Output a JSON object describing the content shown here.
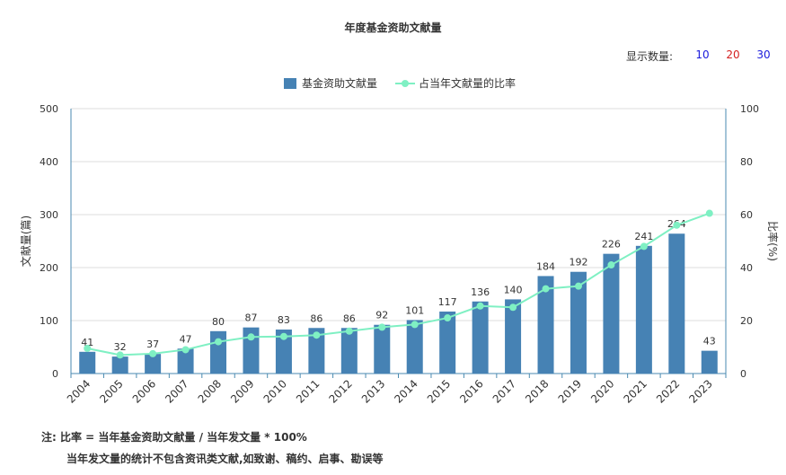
{
  "title": "年度基金资助文献量",
  "count_selector": {
    "label": "显示数量:",
    "options": [
      {
        "label": "10",
        "color": "#1a1adb"
      },
      {
        "label": "20",
        "color": "#d42020"
      },
      {
        "label": "30",
        "color": "#1a1adb"
      }
    ]
  },
  "notes": {
    "line1": "注:   比率 = 当年基金资助文献量 / 当年发文量 * 100%",
    "line2": "当年发文量的统计不包含资讯类文献,如致谢、稿约、启事、勘误等"
  },
  "chart_data": {
    "type": "bar",
    "categories": [
      "2004",
      "2005",
      "2006",
      "2007",
      "2008",
      "2009",
      "2010",
      "2011",
      "2012",
      "2013",
      "2014",
      "2015",
      "2016",
      "2017",
      "2018",
      "2019",
      "2020",
      "2021",
      "2022",
      "2023"
    ],
    "series": [
      {
        "name": "基金资助文献量",
        "type": "bar",
        "axis": "left",
        "color": "#4682b4",
        "values": [
          41,
          32,
          37,
          47,
          80,
          87,
          83,
          86,
          86,
          92,
          101,
          117,
          136,
          140,
          184,
          192,
          226,
          241,
          264,
          43
        ],
        "labels": [
          "41",
          "32",
          "37",
          "47",
          "80",
          "87",
          "83",
          "86",
          "86",
          "92",
          "101",
          "117",
          "136",
          "140",
          "184",
          "192",
          "226",
          "241",
          "264",
          "43"
        ]
      },
      {
        "name": "占当年文献量的比率",
        "type": "line",
        "axis": "right",
        "color": "#7ff0c3",
        "values": [
          9.5,
          7,
          7.5,
          9,
          12,
          13.8,
          14,
          14.5,
          16,
          17.5,
          18.5,
          21,
          25.5,
          25,
          32,
          33,
          41,
          48,
          56,
          60.5
        ]
      }
    ],
    "ylabel": "文献量(篇)",
    "y2label": "比率(%)",
    "ylim": [
      0,
      500
    ],
    "y2lim": [
      0,
      100
    ],
    "yticks": [
      "0",
      "100",
      "200",
      "300",
      "400",
      "500"
    ],
    "y2ticks": [
      "0",
      "20",
      "40",
      "60",
      "80",
      "100"
    ],
    "legend": "top-center",
    "grid": true
  }
}
